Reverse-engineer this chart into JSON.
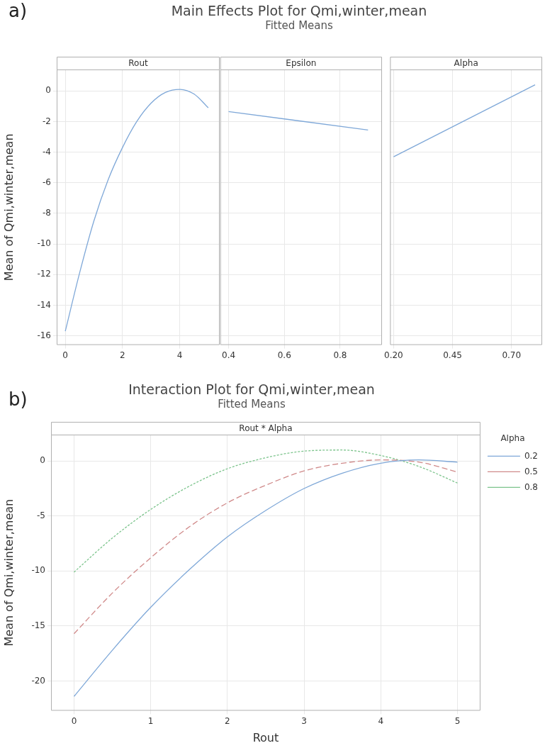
{
  "chart_data": [
    {
      "type": "line",
      "annotations": [
        "a)"
      ],
      "xlabel": "Rout",
      "ylabel": "Mean of Qmi,winter,mean",
      "x": [
        0,
        0.5,
        1,
        1.5,
        2,
        2.5,
        3,
        3.5,
        4,
        4.5,
        5
      ],
      "series": [
        {
          "color": "#7fa8d8",
          "values": [
            -15.7,
            -11.9,
            -8.5,
            -5.8,
            -3.7,
            -2.0,
            -0.8,
            -0.1,
            0.1,
            -0.2,
            -1.1
          ]
        }
      ],
      "xlim": [
        -0.3,
        5.4
      ],
      "xticks": [
        0,
        2,
        4
      ],
      "ylim": [
        -16.6,
        1.4
      ],
      "yticks": [
        -16,
        -14,
        -12,
        -10,
        -8,
        -6,
        -4,
        -2,
        0
      ],
      "grid": true,
      "marker": "none",
      "line_style": "solid"
    },
    {
      "type": "line",
      "title": "Main Effects Plot for Qmi,winter,mean",
      "subtitle": "Fitted Means",
      "xlabel": "Epsilon",
      "x": [
        0.4,
        0.9
      ],
      "series": [
        {
          "color": "#7fa8d8",
          "values": [
            -1.35,
            -2.55
          ]
        }
      ],
      "xlim": [
        0.37,
        0.95
      ],
      "xticks": [
        0.4,
        0.6,
        0.8
      ],
      "ylim": [
        -16.6,
        1.4
      ],
      "yticks": [
        -16,
        -14,
        -12,
        -10,
        -8,
        -6,
        -4,
        -2,
        0
      ],
      "grid": true,
      "marker": "none",
      "line_style": "solid",
      "tick_labels": "x"
    },
    {
      "type": "line",
      "xlabel": "Alpha",
      "x": [
        0.2,
        0.8
      ],
      "series": [
        {
          "color": "#7fa8d8",
          "values": [
            -4.3,
            0.4
          ]
        }
      ],
      "xlim": [
        0.185,
        0.83
      ],
      "xticks": [
        {
          "value": 0.2,
          "label": "0.20"
        },
        {
          "value": 0.45,
          "label": "0.45"
        },
        {
          "value": 0.7,
          "label": "0.70"
        }
      ],
      "ylim": [
        -16.6,
        1.4
      ],
      "yticks": [
        -16,
        -14,
        -12,
        -10,
        -8,
        -6,
        -4,
        -2,
        0
      ],
      "grid": true,
      "marker": "none",
      "line_style": "solid",
      "tick_labels": "x"
    },
    {
      "type": "line",
      "title": "Interaction Plot for Qmi,winter,mean",
      "subtitle": "Fitted Means",
      "annotations": [
        "b)",
        "Rout * Alpha"
      ],
      "xlabel": "Rout",
      "ylabel": "Mean of Qmi,winter,mean",
      "legend_title": "Alpha",
      "legend": "top right",
      "x": [
        0,
        0.5,
        1,
        1.5,
        2,
        2.5,
        3,
        3.5,
        4,
        4.5,
        5
      ],
      "series": [
        {
          "name": "0.2",
          "color": "#7fa8d8",
          "line_style": "solid",
          "values": [
            -21.4,
            -17.2,
            -13.3,
            -9.9,
            -6.9,
            -4.5,
            -2.5,
            -1.1,
            -0.2,
            0.1,
            -0.1
          ]
        },
        {
          "name": "0.5",
          "color": "#d08a8a",
          "line_style": "dashed",
          "values": [
            -15.7,
            -12.0,
            -8.8,
            -6.0,
            -3.8,
            -2.2,
            -0.9,
            -0.2,
            0.1,
            -0.1,
            -1.0
          ]
        },
        {
          "name": "0.8",
          "color": "#7cc48c",
          "line_style": "dotted",
          "values": [
            -10.1,
            -7.0,
            -4.4,
            -2.3,
            -0.7,
            0.3,
            0.9,
            1.0,
            0.5,
            -0.5,
            -2.0
          ]
        }
      ],
      "xlim": [
        -0.3,
        5.3
      ],
      "xticks": [
        0,
        1,
        2,
        3,
        4,
        5
      ],
      "ylim": [
        -22.7,
        2.4
      ],
      "yticks": [
        -20,
        -15,
        -10,
        -5,
        0
      ],
      "grid": true,
      "marker": "none"
    }
  ]
}
